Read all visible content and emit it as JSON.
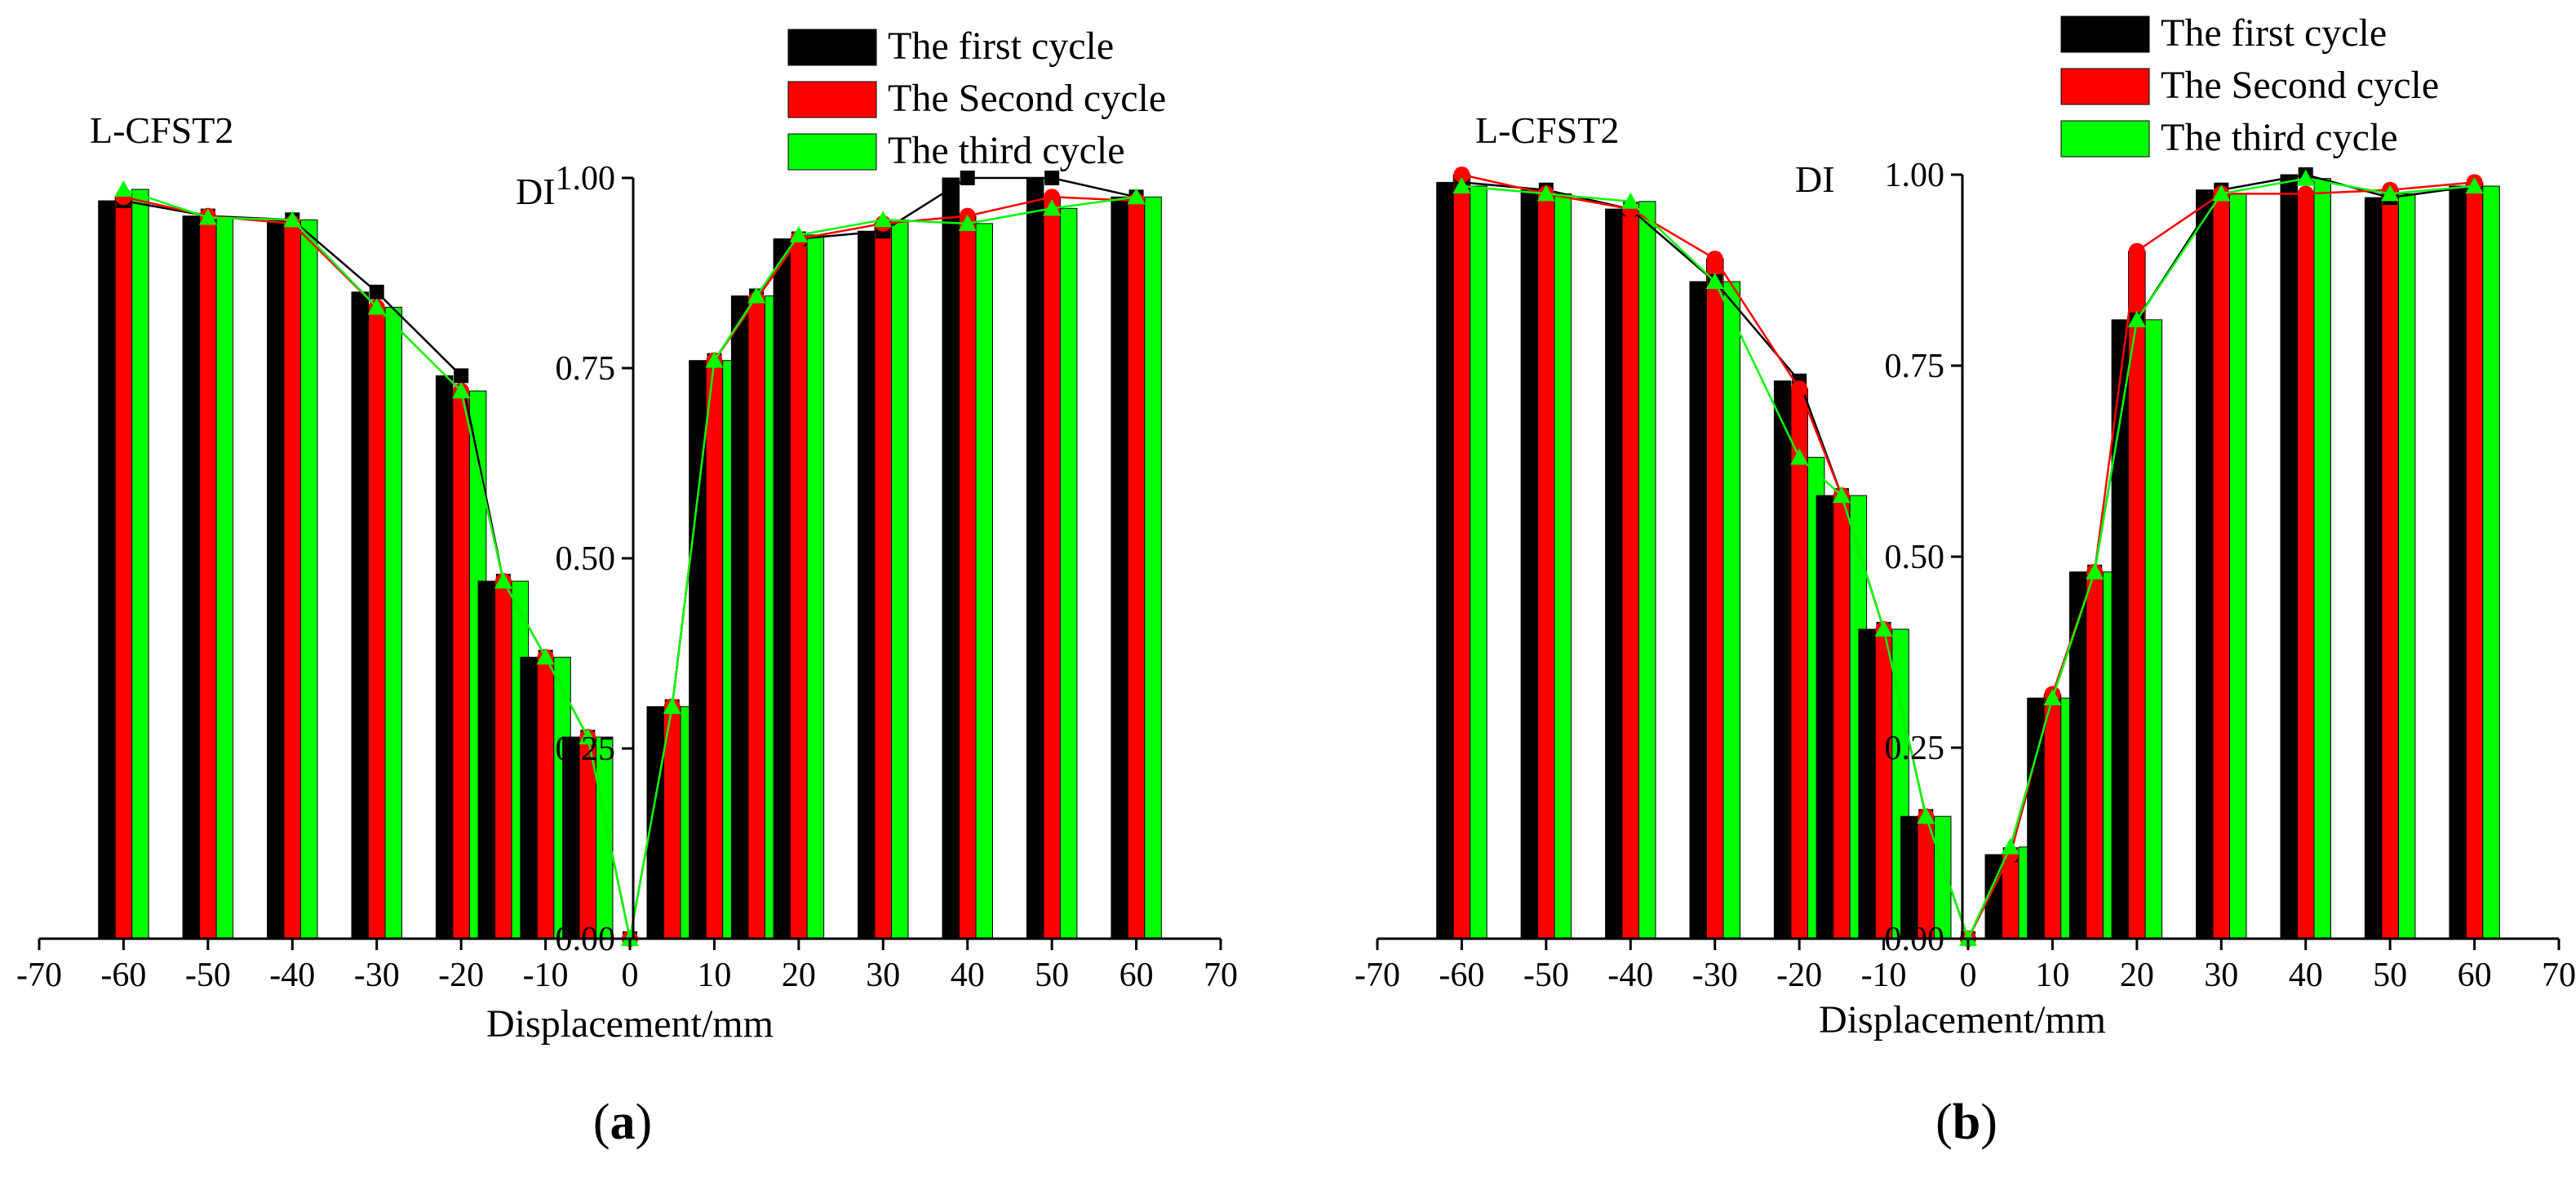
{
  "chart_data": [
    {
      "type": "bar",
      "panel_label": "a",
      "title": "L-CFST2",
      "xlabel": "Displacement/mm",
      "ylabel": "DI",
      "xlim": [
        -70,
        70
      ],
      "ylim": [
        0,
        1
      ],
      "xticks": [
        -70,
        -60,
        -50,
        -40,
        -30,
        -20,
        -10,
        0,
        10,
        20,
        30,
        40,
        50,
        60,
        70
      ],
      "xtick_labels": [
        "-70",
        "-60",
        "-50",
        "-40",
        "-30",
        "-20",
        "-10",
        "0",
        "10",
        "20",
        "30",
        "40",
        "50",
        "60",
        "70"
      ],
      "yticks": [
        0,
        0.25,
        0.5,
        0.75,
        1.0
      ],
      "ytick_labels": [
        "0.00",
        "0.25",
        "0.50",
        "0.75",
        "1.00"
      ],
      "legend_position": "top-center",
      "x": [
        -60,
        -50,
        -40,
        -30,
        -20,
        -15,
        -10,
        -5,
        0,
        5,
        10,
        15,
        20,
        30,
        40,
        50,
        60
      ],
      "series": [
        {
          "name": "The first cycle",
          "color": "#000000",
          "marker": "square",
          "values": [
            0.97,
            0.95,
            0.945,
            0.85,
            0.74,
            0.47,
            0.37,
            0.265,
            0.0,
            0.305,
            0.76,
            0.845,
            0.92,
            0.93,
            1.0,
            1.0,
            0.975
          ]
        },
        {
          "name": "The Second cycle",
          "color": "#ff0000",
          "marker": "circle",
          "values": [
            0.975,
            0.95,
            0.94,
            0.83,
            0.72,
            0.47,
            0.37,
            0.265,
            0.0,
            0.305,
            0.76,
            0.84,
            0.92,
            0.94,
            0.95,
            0.975,
            0.97
          ]
        },
        {
          "name": "The third cycle",
          "color": "#00ff00",
          "marker": "triangle",
          "values": [
            0.985,
            0.948,
            0.945,
            0.83,
            0.72,
            0.47,
            0.37,
            0.265,
            0.0,
            0.305,
            0.76,
            0.845,
            0.925,
            0.945,
            0.94,
            0.96,
            0.975
          ]
        }
      ]
    },
    {
      "type": "bar",
      "panel_label": "b",
      "title": "L-CFST2",
      "xlabel": "Displacement/mm",
      "ylabel": "DI",
      "xlim": [
        -70,
        70
      ],
      "ylim": [
        0,
        1
      ],
      "xticks": [
        -70,
        -60,
        -50,
        -40,
        -30,
        -20,
        -10,
        0,
        10,
        20,
        30,
        40,
        50,
        60,
        70
      ],
      "xtick_labels": [
        "-70",
        "-60",
        "-50",
        "-40",
        "-30",
        "-20",
        "-10",
        "0",
        "10",
        "20",
        "30",
        "40",
        "50",
        "60",
        "70"
      ],
      "yticks": [
        0,
        0.25,
        0.5,
        0.75,
        1.0
      ],
      "ytick_labels": [
        "0.00",
        "0.25",
        "0.50",
        "0.75",
        "1.00"
      ],
      "legend_position": "top-center",
      "x": [
        -60,
        -50,
        -40,
        -30,
        -20,
        -15,
        -10,
        -5,
        0,
        5,
        10,
        15,
        20,
        30,
        40,
        50,
        60
      ],
      "series": [
        {
          "name": "The first cycle",
          "color": "#000000",
          "marker": "square",
          "values": [
            0.99,
            0.98,
            0.955,
            0.86,
            0.73,
            0.58,
            0.405,
            0.16,
            0.0,
            0.11,
            0.315,
            0.48,
            0.81,
            0.98,
            1.0,
            0.97,
            0.985
          ]
        },
        {
          "name": "The Second cycle",
          "color": "#ff0000",
          "marker": "circle",
          "values": [
            1.0,
            0.975,
            0.955,
            0.89,
            0.72,
            0.58,
            0.405,
            0.16,
            0.0,
            0.11,
            0.32,
            0.48,
            0.9,
            0.975,
            0.975,
            0.98,
            0.99
          ]
        },
        {
          "name": "The third cycle",
          "color": "#00ff00",
          "marker": "triangle",
          "values": [
            0.985,
            0.975,
            0.965,
            0.86,
            0.63,
            0.58,
            0.405,
            0.16,
            0.0,
            0.12,
            0.315,
            0.48,
            0.81,
            0.975,
            0.995,
            0.975,
            0.985
          ]
        }
      ]
    }
  ]
}
